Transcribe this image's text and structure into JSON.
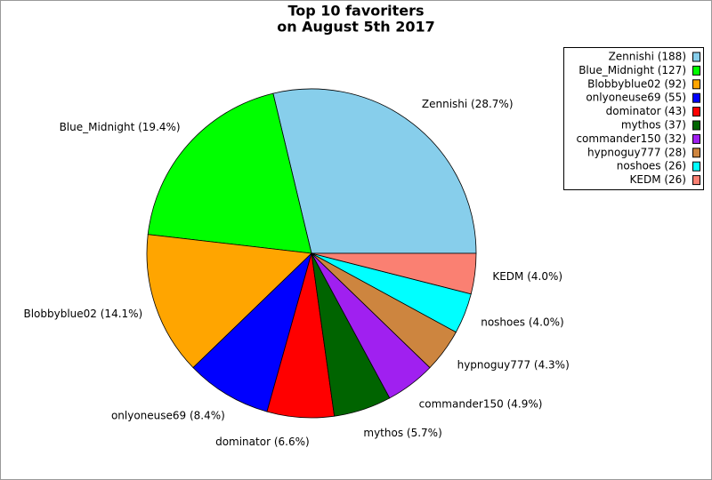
{
  "chart_data": {
    "type": "pie",
    "title": [
      "Top 10 favoriters",
      "on August 5th 2017"
    ],
    "categories": [
      "Zennishi (188)",
      "Blue_Midnight (127)",
      "Blobbyblue02 (92)",
      "onlyoneuse69 (55)",
      "dominator (43)",
      "mythos (37)",
      "commander150 (32)",
      "hypnoguy777 (28)",
      "noshoes (26)",
      "KEDM (26)"
    ],
    "values": [
      188,
      127,
      92,
      55,
      43,
      37,
      32,
      28,
      26,
      26
    ],
    "value_labels": [
      "Zennishi (28.7%)",
      "Blue_Midnight (19.4%)",
      "Blobbyblue02 (14.1%)",
      "onlyoneuse69 (8.4%)",
      "dominator (6.6%)",
      "mythos (5.7%)",
      "commander150 (4.9%)",
      "hypnoguy777 (4.3%)",
      "noshoes (4.0%)",
      "KEDM (4.0%)"
    ],
    "colors": [
      "#87ceeb",
      "#00ff00",
      "#ffa500",
      "#0000ff",
      "#ff0000",
      "#006400",
      "#a020f0",
      "#cd853f",
      "#00ffff",
      "#fa8072"
    ],
    "legend": "upper right"
  }
}
